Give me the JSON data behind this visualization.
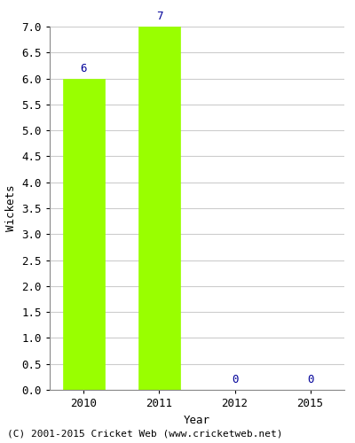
{
  "categories": [
    "2010",
    "2011",
    "2012",
    "2015"
  ],
  "values": [
    6,
    7,
    0,
    0
  ],
  "bar_color": "#99ff00",
  "bar_edge_color": "#99ff00",
  "ylabel": "Wickets",
  "xlabel": "Year",
  "ylim": [
    0,
    7.0
  ],
  "ytick_step": 0.5,
  "annotation_color": "#000099",
  "annotation_fontsize": 9,
  "tick_fontsize": 9,
  "label_fontsize": 9,
  "footer_text": "(C) 2001-2015 Cricket Web (www.cricketweb.net)",
  "footer_fontsize": 8,
  "background_color": "#ffffff",
  "grid_color": "#cccccc",
  "bar_width": 0.55
}
